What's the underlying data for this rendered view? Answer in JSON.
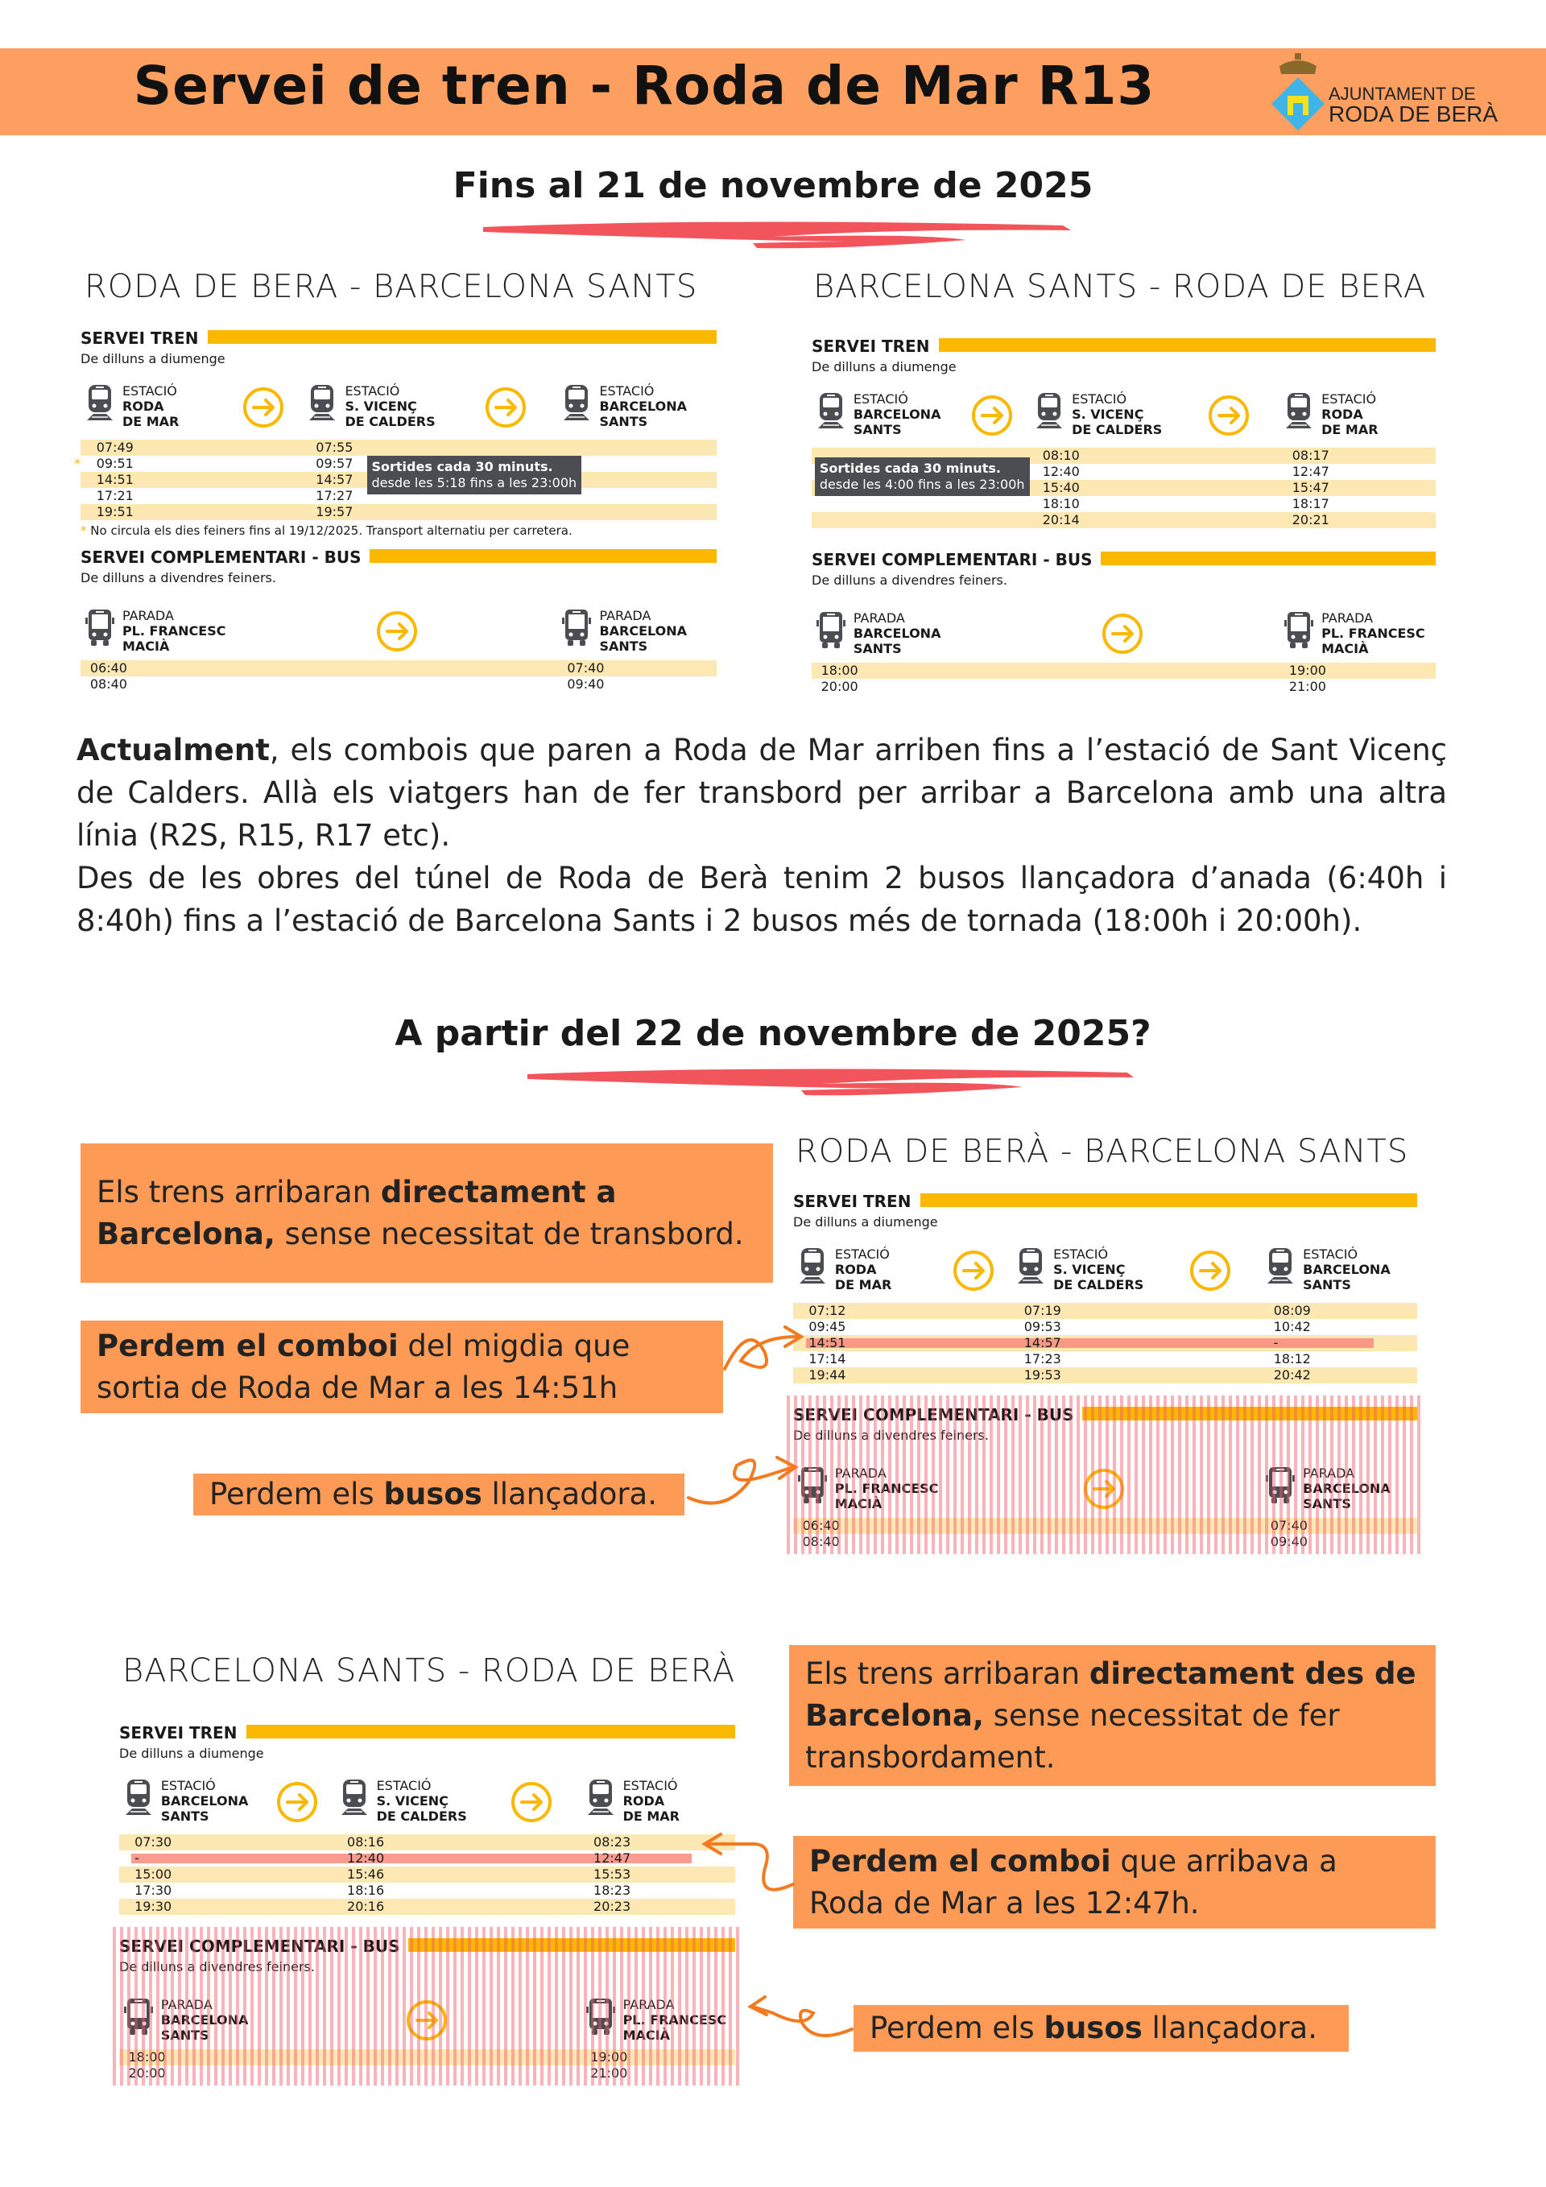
{
  "header": {
    "title": "Servei de tren - Roda de Mar R13",
    "logo_line1": "AJUNTAMENT DE",
    "logo_line2": "RODA DE BERÀ",
    "color": "#fd9f60"
  },
  "section1": {
    "heading": "Fins al 21 de novembre de 2025",
    "left_title": "RODA DE BERA - BARCELONA SANTS",
    "right_title": "BARCELONA SANTS - RODA DE BERA"
  },
  "timetables": [
    {
      "train": {
        "title": "SERVEI TREN",
        "subtitle": "De dilluns a diumenge",
        "stations": [
          {
            "label": "ESTACIÓ",
            "l1": "RODA",
            "l2": "DE MAR"
          },
          {
            "label": "ESTACIÓ",
            "l1": "S. VICENÇ",
            "l2": "DE CALDERS"
          },
          {
            "label": "ESTACIÓ",
            "l1": "BARCELONA",
            "l2": "SANTS"
          }
        ],
        "rows": [
          [
            "07:49",
            "07:55",
            ""
          ],
          [
            "09:51",
            "09:57",
            ""
          ],
          [
            "14:51",
            "14:57",
            ""
          ],
          [
            "17:21",
            "17:27",
            ""
          ],
          [
            "19:51",
            "19:57",
            ""
          ]
        ],
        "starred_row": 1,
        "overlay": {
          "line1": "Sortides cada 30 minuts.",
          "line2": "desde les 5:18 fins a les 23:00h",
          "column": 2
        },
        "note": "No circula els dies feiners fins al 19/12/2025. Transport alternatiu per carretera."
      },
      "bus": {
        "title": "SERVEI COMPLEMENTARI - BUS",
        "subtitle": "De dilluns a divendres feiners.",
        "stations": [
          {
            "label": "PARADA",
            "l1": "PL. FRANCESC",
            "l2": "MACIÀ"
          },
          {
            "label": "PARADA",
            "l1": "BARCELONA",
            "l2": "SANTS"
          }
        ],
        "rows": [
          [
            "06:40",
            "07:40"
          ],
          [
            "08:40",
            "09:40"
          ]
        ],
        "cancelled": false
      }
    },
    {
      "train": {
        "title": "SERVEI TREN",
        "subtitle": "De dilluns a diumenge",
        "stations": [
          {
            "label": "ESTACIÓ",
            "l1": "BARCELONA",
            "l2": "SANTS"
          },
          {
            "label": "ESTACIÓ",
            "l1": "S. VICENÇ",
            "l2": "DE CALDERS"
          },
          {
            "label": "ESTACIÓ",
            "l1": "RODA",
            "l2": "DE MAR"
          }
        ],
        "rows": [
          [
            "",
            "08:10",
            "08:17"
          ],
          [
            "",
            "12:40",
            "12:47"
          ],
          [
            "",
            "15:40",
            "15:47"
          ],
          [
            "",
            "18:10",
            "18:17"
          ],
          [
            "",
            "20:14",
            "20:21"
          ]
        ],
        "overlay": {
          "line1": "Sortides cada 30 minuts.",
          "line2": "desde les 4:00 fins a les 23:00h",
          "column": 0
        }
      },
      "bus": {
        "title": "SERVEI COMPLEMENTARI - BUS",
        "subtitle": "De dilluns a divendres feiners.",
        "stations": [
          {
            "label": "PARADA",
            "l1": "BARCELONA",
            "l2": "SANTS"
          },
          {
            "label": "PARADA",
            "l1": "PL. FRANCESC",
            "l2": "MACIÀ"
          }
        ],
        "rows": [
          [
            "18:00",
            "19:00"
          ],
          [
            "20:00",
            "21:00"
          ]
        ],
        "cancelled": false
      }
    },
    {
      "train": {
        "title": "SERVEI TREN",
        "subtitle": "De dilluns a diumenge",
        "stations": [
          {
            "label": "ESTACIÓ",
            "l1": "RODA",
            "l2": "DE MAR"
          },
          {
            "label": "ESTACIÓ",
            "l1": "S. VICENÇ",
            "l2": "DE CALDERS"
          },
          {
            "label": "ESTACIÓ",
            "l1": "BARCELONA",
            "l2": "SANTS"
          }
        ],
        "rows": [
          [
            "07:12",
            "07:19",
            "08:09"
          ],
          [
            "09:45",
            "09:53",
            "10:42"
          ],
          [
            "14:51",
            "14:57",
            "-"
          ],
          [
            "17:14",
            "17:23",
            "18:12"
          ],
          [
            "19:44",
            "19:53",
            "20:42"
          ]
        ],
        "struck_row": 2
      },
      "bus": {
        "title": "SERVEI COMPLEMENTARI - BUS",
        "subtitle": "De dilluns a divendres feiners.",
        "stations": [
          {
            "label": "PARADA",
            "l1": "PL. FRANCESC",
            "l2": "MACIÀ"
          },
          {
            "label": "PARADA",
            "l1": "BARCELONA",
            "l2": "SANTS"
          }
        ],
        "rows": [
          [
            "06:40",
            "07:40"
          ],
          [
            "08:40",
            "09:40"
          ]
        ],
        "cancelled": true
      }
    },
    {
      "train": {
        "title": "SERVEI TREN",
        "subtitle": "De dilluns a diumenge",
        "stations": [
          {
            "label": "ESTACIÓ",
            "l1": "BARCELONA",
            "l2": "SANTS"
          },
          {
            "label": "ESTACIÓ",
            "l1": "S. VICENÇ",
            "l2": "DE CALDERS"
          },
          {
            "label": "ESTACIÓ",
            "l1": "RODA",
            "l2": "DE MAR"
          }
        ],
        "rows": [
          [
            "07:30",
            "08:16",
            "08:23"
          ],
          [
            "-",
            "12:40",
            "12:47"
          ],
          [
            "15:00",
            "15:46",
            "15:53"
          ],
          [
            "17:30",
            "18:16",
            "18:23"
          ],
          [
            "19:30",
            "20:16",
            "20:23"
          ]
        ],
        "struck_row": 1
      },
      "bus": {
        "title": "SERVEI COMPLEMENTARI - BUS",
        "subtitle": "De dilluns a divendres feiners.",
        "stations": [
          {
            "label": "PARADA",
            "l1": "BARCELONA",
            "l2": "SANTS"
          },
          {
            "label": "PARADA",
            "l1": "PL. FRANCESC",
            "l2": "MACIÀ"
          }
        ],
        "rows": [
          [
            "18:00",
            "19:00"
          ],
          [
            "20:00",
            "21:00"
          ]
        ],
        "cancelled": true
      }
    }
  ],
  "paragraph": {
    "p1_bold": "Actualment",
    "p1_rest": ", els combois que paren a Roda de Mar arriben fins a l’estació de Sant Vicenç de Calders. Allà els viatgers han de fer transbord per arribar a Barcelona amb una altra línia (R2S, R15, R17 etc).",
    "p2": "Des de les obres del túnel de Roda de Berà tenim 2 busos llançadora d’anada (6:40h i 8:40h) fins a l’estació de Barcelona Sants i 2 busos més de tornada (18:00h i 20:00h)."
  },
  "section2": {
    "heading": "A partir del 22 de novembre de 2025?",
    "right_title": "RODA DE BERÀ - BARCELONA SANTS",
    "left_title": "BARCELONA SANTS - RODA DE BERÀ"
  },
  "callouts": [
    {
      "a": "Els trens arribaran ",
      "b": "directament a Barcelona,",
      "c": " sense necessitat de transbord."
    },
    {
      "a": "",
      "b": "Perdem el comboi",
      "c": " del migdia que sortia de Roda de Mar a les 14:51h"
    },
    {
      "a": "Perdem els ",
      "b": "busos",
      "c": " llançadora."
    },
    {
      "a": "Els trens arribaran ",
      "b": "directament des de Barcelona,",
      "c": " sense necessitat de fer transbordament."
    },
    {
      "a": "",
      "b": "Perdem el comboi",
      "c": " que arribava a Roda de Mar a les 12:47h."
    },
    {
      "a": "Perdem els ",
      "b": "busos",
      "c": " llançadora."
    }
  ],
  "colors": {
    "accent_yellow": "#fbb800",
    "row_cream": "#fde8b4",
    "callout_orange": "#fd9a56",
    "swoosh_red": "#f2545b",
    "strike": "#f8897c",
    "icon_gray": "#4b4d52"
  }
}
